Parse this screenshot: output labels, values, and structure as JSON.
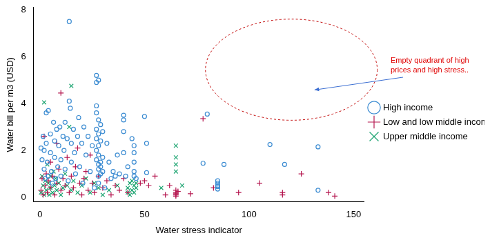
{
  "chart_data": {
    "type": "scatter",
    "x_label": "Water stress indicator",
    "y_label": "Water bill per m3 (USD)",
    "annotation": "Empty quadrant of high prices and high stress..",
    "xlim": [
      -3,
      155
    ],
    "ylim": [
      -0.2,
      8.1
    ],
    "xticks": [
      0,
      50,
      100,
      150
    ],
    "yticks": [
      0,
      2,
      4,
      6,
      8
    ],
    "grid": false,
    "legend": "right",
    "series": [
      {
        "name": "High income",
        "color": "#3c8cd2",
        "marker": "circle",
        "x": [
          0.5,
          1,
          1.5,
          2,
          2,
          2.5,
          3,
          3,
          3.5,
          4,
          4,
          5,
          5,
          5.5,
          6,
          6.5,
          7,
          7,
          7.5,
          8,
          8.5,
          9,
          9.5,
          10,
          10,
          11,
          11.5,
          12,
          12,
          13,
          13.5,
          14,
          14,
          14.5,
          15,
          15,
          16,
          16.5,
          17,
          18,
          18.5,
          19,
          20,
          20.5,
          21,
          22,
          23,
          24,
          25,
          26,
          27,
          27,
          27,
          27,
          27,
          27,
          27,
          27,
          28,
          28,
          28,
          28,
          28,
          28,
          28,
          28,
          28,
          29,
          29,
          29,
          29,
          29,
          30,
          30,
          30,
          31,
          32,
          33,
          34,
          35,
          36,
          37,
          38,
          40,
          40,
          40,
          40,
          41,
          42,
          44,
          45,
          45,
          45,
          45,
          45,
          46,
          50,
          51,
          51,
          78,
          80,
          85,
          85,
          85,
          85,
          85,
          88,
          110,
          117,
          133,
          133
        ],
        "values": [
          2.1,
          1.6,
          2.6,
          2.0,
          1.2,
          0.8,
          3.6,
          2.3,
          1.5,
          3.7,
          0.9,
          2.7,
          1.9,
          1.1,
          0.6,
          3.2,
          2.4,
          1.7,
          0.8,
          2.9,
          1.3,
          2.2,
          3.0,
          1.6,
          0.9,
          2.6,
          2.0,
          3.2,
          1.2,
          2.5,
          0.7,
          7.5,
          4.1,
          3.8,
          2.3,
          1.5,
          2.9,
          1.9,
          1.0,
          2.6,
          3.4,
          1.3,
          2.3,
          0.6,
          3.0,
          1.8,
          2.6,
          1.1,
          2.2,
          0.4,
          5.2,
          4.9,
          3.9,
          3.6,
          2.9,
          2.5,
          2.0,
          1.6,
          5.0,
          3.3,
          2.7,
          2.2,
          1.8,
          1.4,
          1.2,
          0.9,
          0.6,
          3.1,
          2.4,
          1.5,
          1.3,
          1.0,
          2.8,
          1.7,
          1.1,
          0.4,
          2.3,
          1.5,
          0.8,
          1.1,
          0.9,
          1.8,
          1.0,
          3.5,
          3.3,
          2.8,
          1.9,
          0.9,
          1.3,
          2.5,
          2.2,
          1.9,
          1.5,
          1.1,
          0.9,
          0.8,
          3.45,
          2.3,
          1.05,
          1.45,
          3.55,
          0.7,
          0.6,
          0.5,
          0.45,
          0.35,
          1.4,
          2.25,
          1.4,
          2.15,
          0.3
        ]
      },
      {
        "name": "Low and low middle income",
        "color": "#b5164f",
        "marker": "cross",
        "x": [
          0.5,
          1,
          1.5,
          2,
          2.5,
          3,
          3.5,
          4,
          5,
          5,
          6,
          7,
          8,
          8,
          9,
          10,
          10,
          11,
          12,
          13,
          14,
          15,
          16,
          17,
          18,
          19,
          20,
          21,
          22,
          23,
          24,
          25,
          26,
          28,
          30,
          32,
          34,
          36,
          38,
          40,
          42,
          48,
          50,
          52,
          55,
          60,
          62,
          65,
          65,
          65,
          65,
          65,
          66,
          72,
          78,
          83,
          95,
          105,
          116,
          116,
          125,
          138,
          141
        ],
        "values": [
          0.3,
          0.8,
          0.1,
          2.6,
          0.5,
          1.0,
          0.2,
          0.7,
          1.5,
          0.4,
          0.9,
          0.1,
          2.3,
          0.6,
          1.2,
          4.45,
          0.3,
          0.8,
          0.5,
          1.7,
          0.2,
          0.9,
          0.4,
          1.3,
          2.1,
          0.6,
          0.1,
          0.8,
          1.1,
          0.3,
          1.8,
          0.6,
          0.2,
          0.9,
          0.4,
          0.7,
          0.1,
          0.5,
          0.3,
          0.8,
          0.2,
          0.6,
          0.7,
          0.5,
          0.9,
          0.1,
          0.5,
          0.05,
          0.1,
          0.15,
          0.2,
          0.3,
          0.25,
          0.15,
          3.35,
          0.4,
          0.2,
          0.6,
          0.1,
          0.2,
          1.0,
          0.2,
          0.05
        ]
      },
      {
        "name": "Upper middle income",
        "color": "#1aa36f",
        "marker": "crossRot",
        "x": [
          0.5,
          1,
          1.5,
          2,
          2,
          2.5,
          3,
          3.5,
          4,
          4.5,
          5,
          5,
          6,
          6.5,
          7,
          7.5,
          8,
          9,
          10,
          11,
          12,
          13,
          14,
          15,
          15,
          16,
          18,
          20,
          22,
          24,
          26,
          28,
          30,
          33,
          37,
          42,
          42,
          43,
          43,
          44,
          44,
          45,
          45,
          46,
          46,
          58,
          65,
          65,
          65,
          65,
          68
        ],
        "values": [
          0.2,
          0.9,
          0.5,
          4.05,
          0.1,
          0.7,
          0.3,
          1.4,
          0.6,
          0.1,
          0.9,
          0.4,
          0.2,
          1.1,
          0.5,
          0.8,
          0.3,
          0.6,
          0.1,
          0.4,
          1.0,
          0.5,
          3.0,
          4.75,
          0.3,
          0.7,
          0.2,
          0.5,
          0.8,
          0.2,
          0.6,
          0.4,
          0.1,
          0.3,
          0.5,
          0.2,
          0.4,
          0.6,
          0.1,
          0.3,
          0.7,
          0.5,
          0.2,
          0.4,
          0.6,
          0.4,
          2.2,
          1.7,
          1.4,
          1.1,
          0.5
        ]
      }
    ]
  }
}
